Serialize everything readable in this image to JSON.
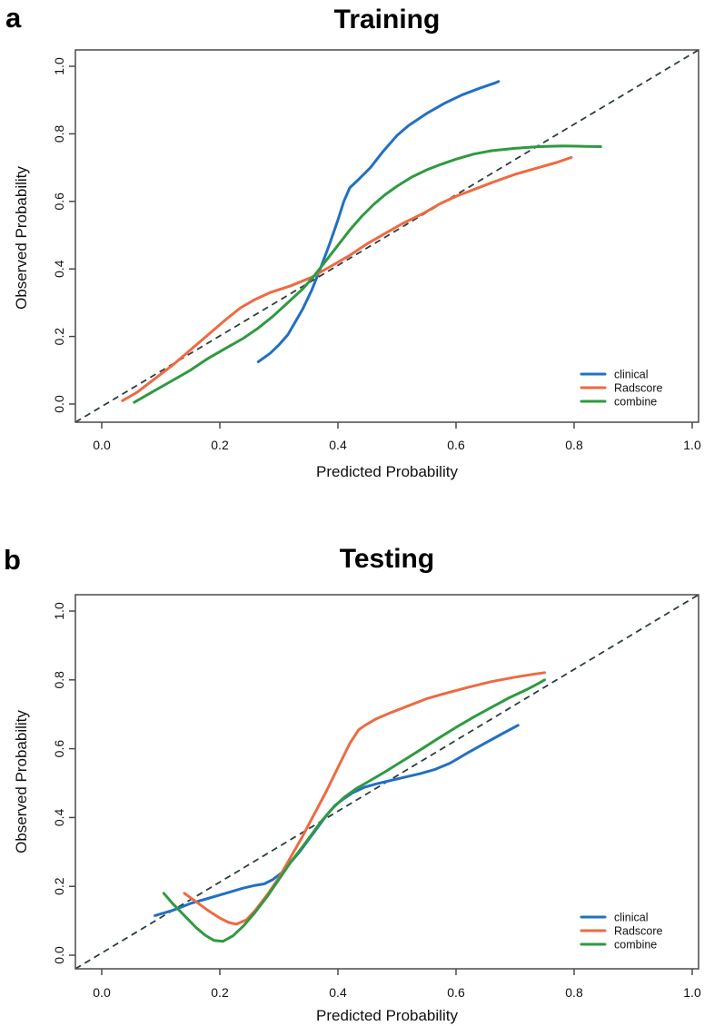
{
  "chart_data": [
    {
      "type": "line",
      "panel_label": "a",
      "title": "Training",
      "xlabel": "Predicted Probability",
      "ylabel": "Observed Probability",
      "xlim": [
        0,
        1
      ],
      "ylim": [
        0,
        1
      ],
      "grid": false,
      "x_ticks": {
        "values": [
          0,
          0.2,
          0.4,
          0.6,
          0.8,
          1.0
        ],
        "labels": [
          "0.0",
          "0.2",
          "0.4",
          "0.6",
          "0.8",
          "1.0"
        ]
      },
      "y_ticks": {
        "values": [
          0,
          0.2,
          0.4,
          0.6,
          0.8,
          1.0
        ],
        "labels": [
          "0.0",
          "0.2",
          "0.4",
          "0.6",
          "0.8",
          "1.0"
        ]
      },
      "legend": {
        "position": "bottom-right"
      },
      "reference_line": {
        "style": "dashed",
        "color": "#2c3e3e",
        "from": [
          0,
          0
        ],
        "to": [
          1,
          1
        ]
      },
      "series": [
        {
          "name": "clinical",
          "color": "#2170c4",
          "points": [
            [
              0.265,
              0.125
            ],
            [
              0.285,
              0.15
            ],
            [
              0.3,
              0.175
            ],
            [
              0.315,
              0.205
            ],
            [
              0.325,
              0.235
            ],
            [
              0.34,
              0.28
            ],
            [
              0.355,
              0.335
            ],
            [
              0.37,
              0.4
            ],
            [
              0.385,
              0.47
            ],
            [
              0.4,
              0.545
            ],
            [
              0.41,
              0.6
            ],
            [
              0.42,
              0.64
            ],
            [
              0.435,
              0.665
            ],
            [
              0.455,
              0.7
            ],
            [
              0.475,
              0.745
            ],
            [
              0.5,
              0.795
            ],
            [
              0.52,
              0.825
            ],
            [
              0.55,
              0.86
            ],
            [
              0.58,
              0.89
            ],
            [
              0.61,
              0.915
            ],
            [
              0.64,
              0.935
            ],
            [
              0.665,
              0.95
            ],
            [
              0.672,
              0.955
            ]
          ]
        },
        {
          "name": "Radscore",
          "color": "#ee6a41",
          "points": [
            [
              0.035,
              0.01
            ],
            [
              0.06,
              0.035
            ],
            [
              0.09,
              0.075
            ],
            [
              0.12,
              0.115
            ],
            [
              0.15,
              0.16
            ],
            [
              0.18,
              0.205
            ],
            [
              0.21,
              0.25
            ],
            [
              0.235,
              0.285
            ],
            [
              0.26,
              0.31
            ],
            [
              0.285,
              0.33
            ],
            [
              0.32,
              0.35
            ],
            [
              0.355,
              0.375
            ],
            [
              0.39,
              0.41
            ],
            [
              0.42,
              0.44
            ],
            [
              0.45,
              0.475
            ],
            [
              0.48,
              0.505
            ],
            [
              0.51,
              0.535
            ],
            [
              0.545,
              0.565
            ],
            [
              0.575,
              0.595
            ],
            [
              0.6,
              0.615
            ],
            [
              0.63,
              0.635
            ],
            [
              0.66,
              0.655
            ],
            [
              0.7,
              0.68
            ],
            [
              0.74,
              0.7
            ],
            [
              0.77,
              0.715
            ],
            [
              0.795,
              0.73
            ]
          ]
        },
        {
          "name": "combine",
          "color": "#2f9a41",
          "points": [
            [
              0.055,
              0.005
            ],
            [
              0.09,
              0.04
            ],
            [
              0.12,
              0.07
            ],
            [
              0.15,
              0.1
            ],
            [
              0.18,
              0.135
            ],
            [
              0.21,
              0.165
            ],
            [
              0.24,
              0.195
            ],
            [
              0.265,
              0.225
            ],
            [
              0.29,
              0.26
            ],
            [
              0.315,
              0.3
            ],
            [
              0.34,
              0.34
            ],
            [
              0.36,
              0.38
            ],
            [
              0.38,
              0.425
            ],
            [
              0.4,
              0.47
            ],
            [
              0.42,
              0.515
            ],
            [
              0.44,
              0.555
            ],
            [
              0.46,
              0.59
            ],
            [
              0.48,
              0.62
            ],
            [
              0.5,
              0.645
            ],
            [
              0.525,
              0.672
            ],
            [
              0.55,
              0.693
            ],
            [
              0.575,
              0.71
            ],
            [
              0.6,
              0.725
            ],
            [
              0.63,
              0.74
            ],
            [
              0.66,
              0.75
            ],
            [
              0.7,
              0.757
            ],
            [
              0.74,
              0.762
            ],
            [
              0.78,
              0.764
            ],
            [
              0.82,
              0.763
            ],
            [
              0.845,
              0.762
            ]
          ]
        }
      ]
    },
    {
      "type": "line",
      "panel_label": "b",
      "title": "Testing",
      "xlabel": "Predicted Probability",
      "ylabel": "Observed Probability",
      "xlim": [
        0,
        1
      ],
      "ylim": [
        0,
        1
      ],
      "grid": false,
      "x_ticks": {
        "values": [
          0,
          0.2,
          0.4,
          0.6,
          0.8,
          1.0
        ],
        "labels": [
          "0.0",
          "0.2",
          "0.4",
          "0.6",
          "0.8",
          "1.0"
        ]
      },
      "y_ticks": {
        "values": [
          0,
          0.2,
          0.4,
          0.6,
          0.8,
          1.0
        ],
        "labels": [
          "0.0",
          "0.2",
          "0.4",
          "0.6",
          "0.8",
          "1.0"
        ]
      },
      "legend": {
        "position": "bottom-right"
      },
      "reference_line": {
        "style": "dashed",
        "color": "#2c3e3e",
        "from": [
          0,
          0
        ],
        "to": [
          1,
          1
        ]
      },
      "series": [
        {
          "name": "clinical",
          "color": "#2170c4",
          "points": [
            [
              0.09,
              0.115
            ],
            [
              0.12,
              0.13
            ],
            [
              0.15,
              0.15
            ],
            [
              0.18,
              0.165
            ],
            [
              0.21,
              0.18
            ],
            [
              0.24,
              0.195
            ],
            [
              0.26,
              0.203
            ],
            [
              0.275,
              0.207
            ],
            [
              0.29,
              0.22
            ],
            [
              0.305,
              0.24
            ],
            [
              0.32,
              0.27
            ],
            [
              0.335,
              0.3
            ],
            [
              0.35,
              0.335
            ],
            [
              0.365,
              0.37
            ],
            [
              0.38,
              0.405
            ],
            [
              0.395,
              0.435
            ],
            [
              0.41,
              0.455
            ],
            [
              0.425,
              0.472
            ],
            [
              0.445,
              0.488
            ],
            [
              0.465,
              0.498
            ],
            [
              0.49,
              0.508
            ],
            [
              0.515,
              0.518
            ],
            [
              0.54,
              0.528
            ],
            [
              0.565,
              0.54
            ],
            [
              0.59,
              0.558
            ],
            [
              0.62,
              0.588
            ],
            [
              0.65,
              0.617
            ],
            [
              0.68,
              0.645
            ],
            [
              0.705,
              0.668
            ]
          ]
        },
        {
          "name": "Radscore",
          "color": "#ee6a41",
          "points": [
            [
              0.14,
              0.18
            ],
            [
              0.16,
              0.155
            ],
            [
              0.18,
              0.13
            ],
            [
              0.2,
              0.108
            ],
            [
              0.215,
              0.095
            ],
            [
              0.228,
              0.09
            ],
            [
              0.245,
              0.103
            ],
            [
              0.26,
              0.13
            ],
            [
              0.28,
              0.175
            ],
            [
              0.3,
              0.225
            ],
            [
              0.32,
              0.285
            ],
            [
              0.34,
              0.345
            ],
            [
              0.36,
              0.41
            ],
            [
              0.38,
              0.475
            ],
            [
              0.4,
              0.545
            ],
            [
              0.42,
              0.615
            ],
            [
              0.435,
              0.655
            ],
            [
              0.445,
              0.667
            ],
            [
              0.465,
              0.687
            ],
            [
              0.49,
              0.705
            ],
            [
              0.52,
              0.725
            ],
            [
              0.55,
              0.745
            ],
            [
              0.58,
              0.76
            ],
            [
              0.62,
              0.778
            ],
            [
              0.66,
              0.795
            ],
            [
              0.7,
              0.808
            ],
            [
              0.73,
              0.816
            ],
            [
              0.75,
              0.821
            ]
          ]
        },
        {
          "name": "combine",
          "color": "#2f9a41",
          "points": [
            [
              0.105,
              0.18
            ],
            [
              0.12,
              0.15
            ],
            [
              0.14,
              0.115
            ],
            [
              0.16,
              0.08
            ],
            [
              0.175,
              0.058
            ],
            [
              0.19,
              0.043
            ],
            [
              0.205,
              0.04
            ],
            [
              0.222,
              0.056
            ],
            [
              0.24,
              0.085
            ],
            [
              0.26,
              0.125
            ],
            [
              0.28,
              0.17
            ],
            [
              0.3,
              0.22
            ],
            [
              0.32,
              0.27
            ],
            [
              0.34,
              0.315
            ],
            [
              0.355,
              0.35
            ],
            [
              0.37,
              0.385
            ],
            [
              0.39,
              0.425
            ],
            [
              0.41,
              0.458
            ],
            [
              0.43,
              0.483
            ],
            [
              0.455,
              0.508
            ],
            [
              0.48,
              0.533
            ],
            [
              0.51,
              0.565
            ],
            [
              0.54,
              0.597
            ],
            [
              0.57,
              0.63
            ],
            [
              0.6,
              0.662
            ],
            [
              0.63,
              0.692
            ],
            [
              0.66,
              0.72
            ],
            [
              0.69,
              0.748
            ],
            [
              0.72,
              0.772
            ],
            [
              0.74,
              0.79
            ],
            [
              0.75,
              0.8
            ]
          ]
        }
      ]
    }
  ]
}
